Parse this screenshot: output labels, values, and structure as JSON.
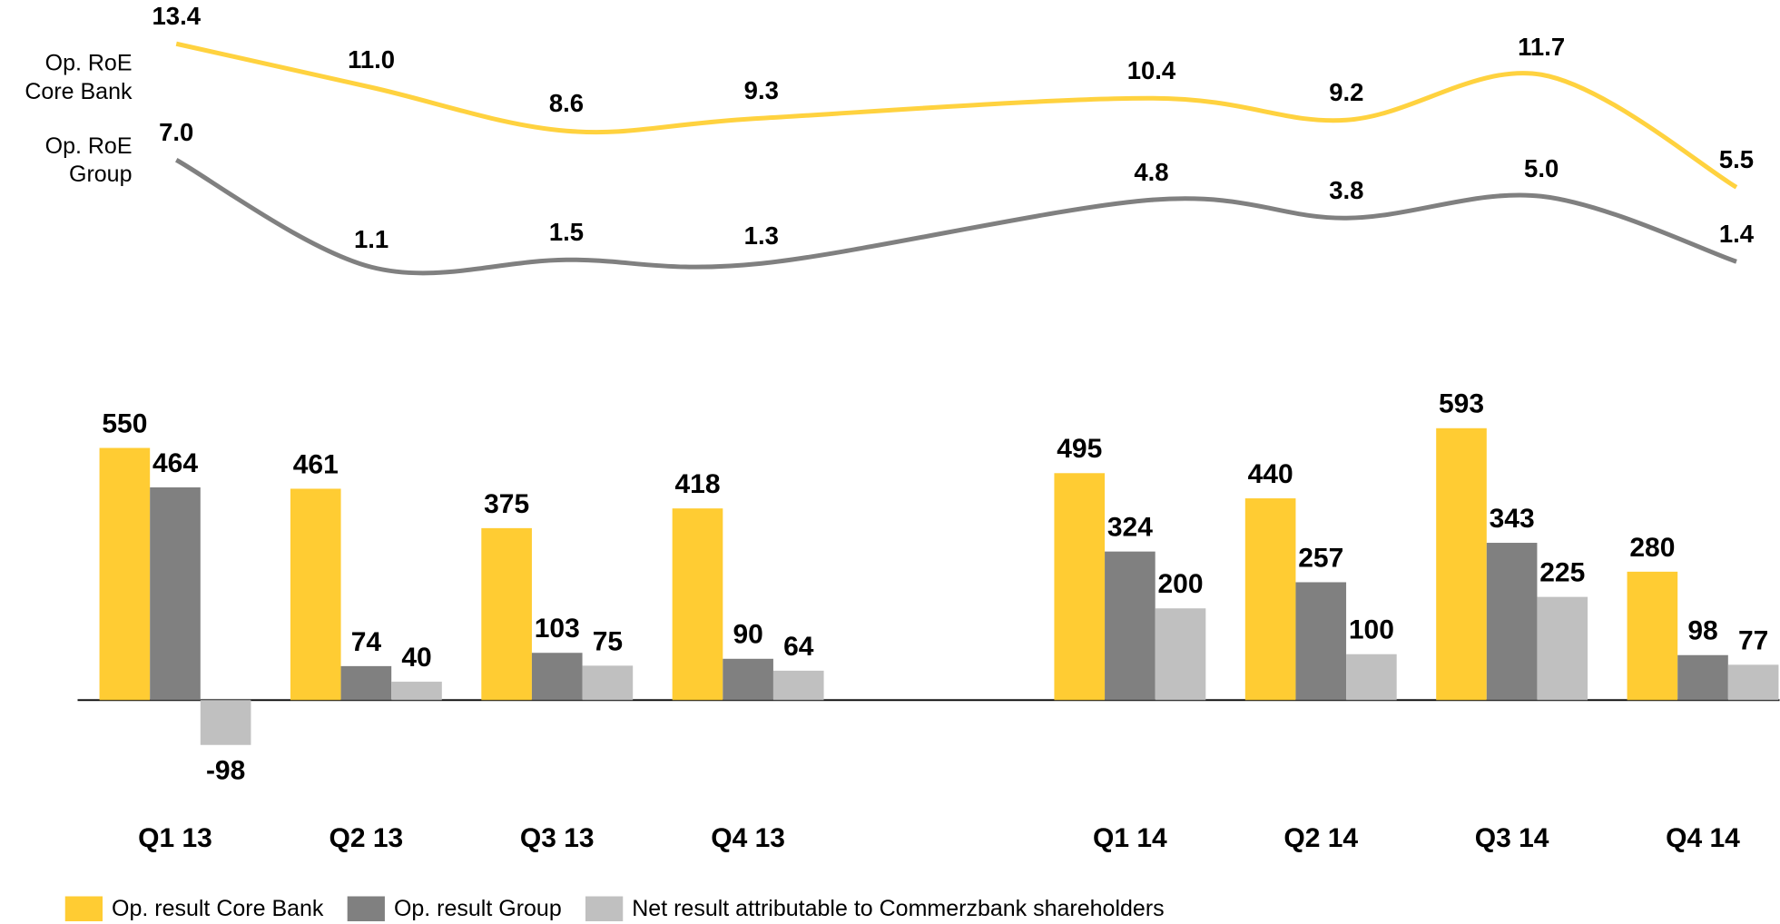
{
  "chart_data": [
    {
      "type": "line",
      "series": [
        {
          "name": "Op. RoE Core Bank",
          "color": "#FFD23F",
          "values": [
            13.4,
            11.0,
            8.6,
            9.3,
            10.4,
            9.2,
            11.7,
            5.5
          ],
          "value_labels": [
            "13.4",
            "11.0",
            "8.6",
            "9.3",
            "10.4",
            "9.2",
            "11.7",
            "5.5"
          ]
        },
        {
          "name": "Op. RoE Group",
          "color": "#808080",
          "values": [
            7.0,
            1.1,
            1.5,
            1.3,
            4.8,
            3.8,
            5.0,
            1.4
          ],
          "value_labels": [
            "7.0",
            "1.1",
            "1.5",
            "1.3",
            "4.8",
            "3.8",
            "5.0",
            "1.4"
          ]
        }
      ]
    },
    {
      "type": "bar",
      "categories": [
        "Q1 13",
        "Q2 13",
        "Q3 13",
        "Q4 13",
        null,
        "Q1 14",
        "Q2 14",
        "Q3 14",
        "Q4 14"
      ],
      "series": [
        {
          "name": "Op. result Core Bank",
          "color": "#FFCC33",
          "values": [
            550,
            461,
            375,
            418,
            null,
            495,
            440,
            593,
            280
          ]
        },
        {
          "name": "Op. result Group",
          "color": "#808080",
          "values": [
            464,
            74,
            103,
            90,
            null,
            324,
            257,
            343,
            98
          ]
        },
        {
          "name": "Net result attributable to Commerzbank shareholders",
          "color": "#C0C0C0",
          "values": [
            -98,
            40,
            75,
            64,
            null,
            200,
            100,
            225,
            77
          ]
        }
      ]
    }
  ]
}
